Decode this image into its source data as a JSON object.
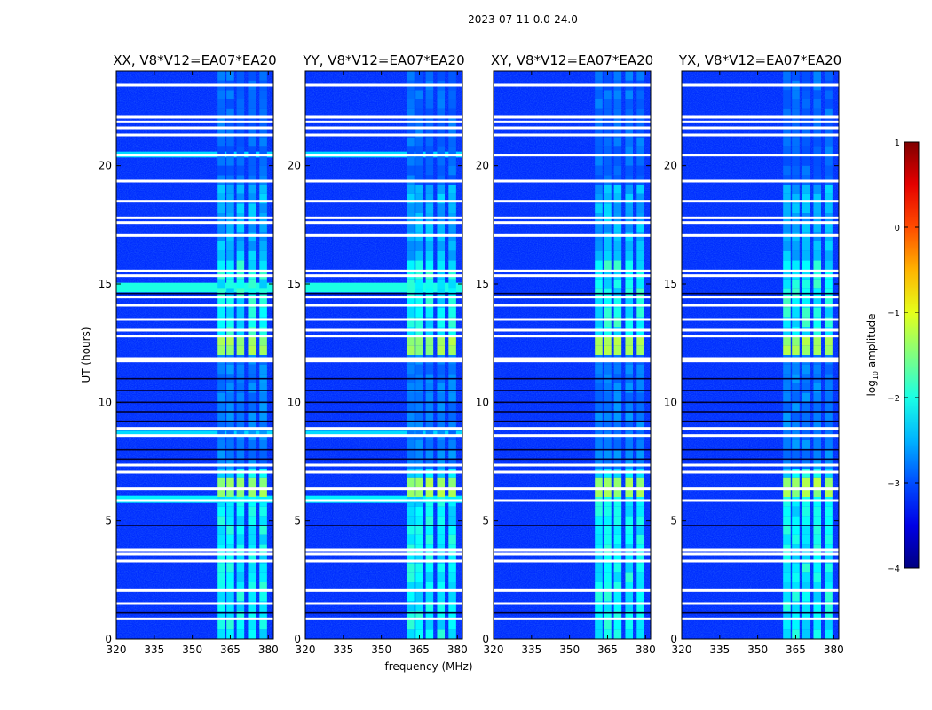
{
  "chart_data": {
    "type": "heatmap",
    "suptitle": "2023-07-11 0.0-24.0",
    "xlabel": "frequency (MHz)",
    "ylabel": "UT (hours)",
    "xlim": [
      320,
      382
    ],
    "ylim": [
      0,
      24
    ],
    "xticks": [
      320,
      335,
      350,
      365,
      380
    ],
    "xtick_labels": [
      "320",
      "335",
      "350",
      "365",
      "380"
    ],
    "yticks": [
      0,
      5,
      10,
      15,
      20
    ],
    "ytick_labels": [
      "0",
      "5",
      "10",
      "15",
      "20"
    ],
    "panels": [
      {
        "title": "XX, V8*V12=EA07*EA20",
        "pol": "XX"
      },
      {
        "title": "YY, V8*V12=EA07*EA20",
        "pol": "YY"
      },
      {
        "title": "XY, V8*V12=EA07*EA20",
        "pol": "XY"
      },
      {
        "title": "YX, V8*V12=EA07*EA20",
        "pol": "YX"
      }
    ],
    "colorbar": {
      "label": "log10 amplitude",
      "label_main": "log",
      "label_sub": "10",
      "label_rest": " amplitude",
      "range": [
        -4,
        1
      ],
      "ticks": [
        -4,
        -3,
        -2,
        -1,
        0,
        1
      ],
      "tick_labels": [
        "−4",
        "−3",
        "−2",
        "−1",
        "0",
        "1"
      ],
      "colormap": "jet"
    },
    "rfi_bands_mhz": [
      [
        360,
        363
      ],
      [
        363.5,
        366.5
      ],
      [
        367.5,
        370.5
      ],
      [
        372,
        375
      ],
      [
        376.5,
        379.5
      ]
    ],
    "flagged_white_ut": [
      0.85,
      1.5,
      2.05,
      3.3,
      3.6,
      3.75,
      5.85,
      6.35,
      7.05,
      7.35,
      8.6,
      8.9,
      11.75,
      11.85,
      12.8,
      13.05,
      13.5,
      14.1,
      14.45,
      15.35,
      15.55,
      17.05,
      17.6,
      17.8,
      18.5,
      19.35,
      20.45,
      21.3,
      21.6,
      21.85,
      22.05,
      23.4
    ]
  }
}
